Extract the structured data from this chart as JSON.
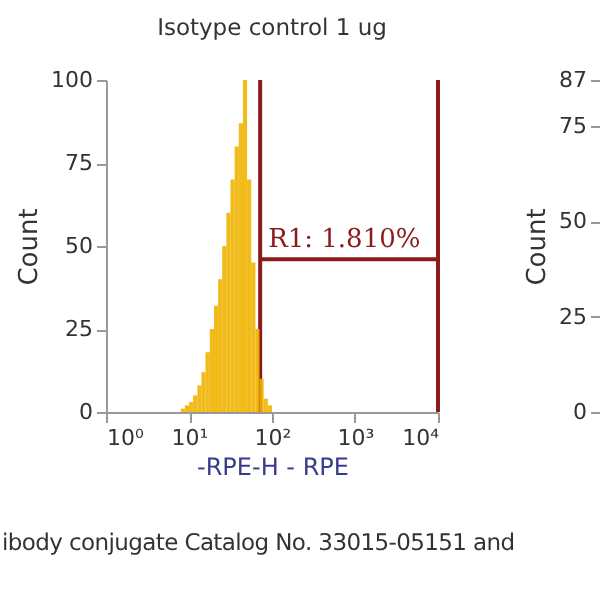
{
  "chart_data": [
    {
      "type": "histogram",
      "title": "Isotype control 1 ug",
      "xlabel": "-RPE-H - RPE",
      "ylabel": "Count",
      "log": "x",
      "color": "#f0b400",
      "bins": [
        7.94,
        8.91,
        10,
        11.2,
        12.6,
        14.1,
        15.8,
        17.8,
        20,
        22.4,
        25.1,
        28.2,
        31.6,
        35.5,
        39.8,
        44.7,
        50.1,
        56.2,
        63.1,
        70.8,
        79.4,
        89.1,
        100
      ],
      "values": [
        1,
        2,
        3,
        5,
        8,
        12,
        18,
        25,
        32,
        40,
        50,
        60,
        70,
        80,
        87,
        100,
        70,
        45,
        25,
        10,
        4,
        2
      ],
      "xlim": [
        1,
        10000
      ],
      "xticks": [
        {
          "value": 1,
          "label": "10⁰"
        },
        {
          "value": 10,
          "label": "10¹"
        },
        {
          "value": 100,
          "label": "10²"
        },
        {
          "value": 1000,
          "label": "10³"
        },
        {
          "value": 10000,
          "label": "10⁴"
        }
      ],
      "ylim": [
        0,
        100
      ],
      "yticks": [
        0,
        25,
        50,
        75,
        100
      ],
      "ref_lines": [
        {
          "axis": "x",
          "value": 72,
          "color": "#8b1a1a"
        },
        {
          "axis": "x",
          "value": 10000,
          "color": "#8b1a1a"
        }
      ],
      "annotations": [
        {
          "text": "R1: 1.810%",
          "x": 72,
          "y": 46
        },
        "ibody conjugate Catalog No. 33015-05151 and"
      ]
    },
    {
      "type": "other",
      "ylabel": "Count",
      "annotations": [
        "87",
        "75",
        "50",
        "25",
        "0"
      ]
    }
  ]
}
